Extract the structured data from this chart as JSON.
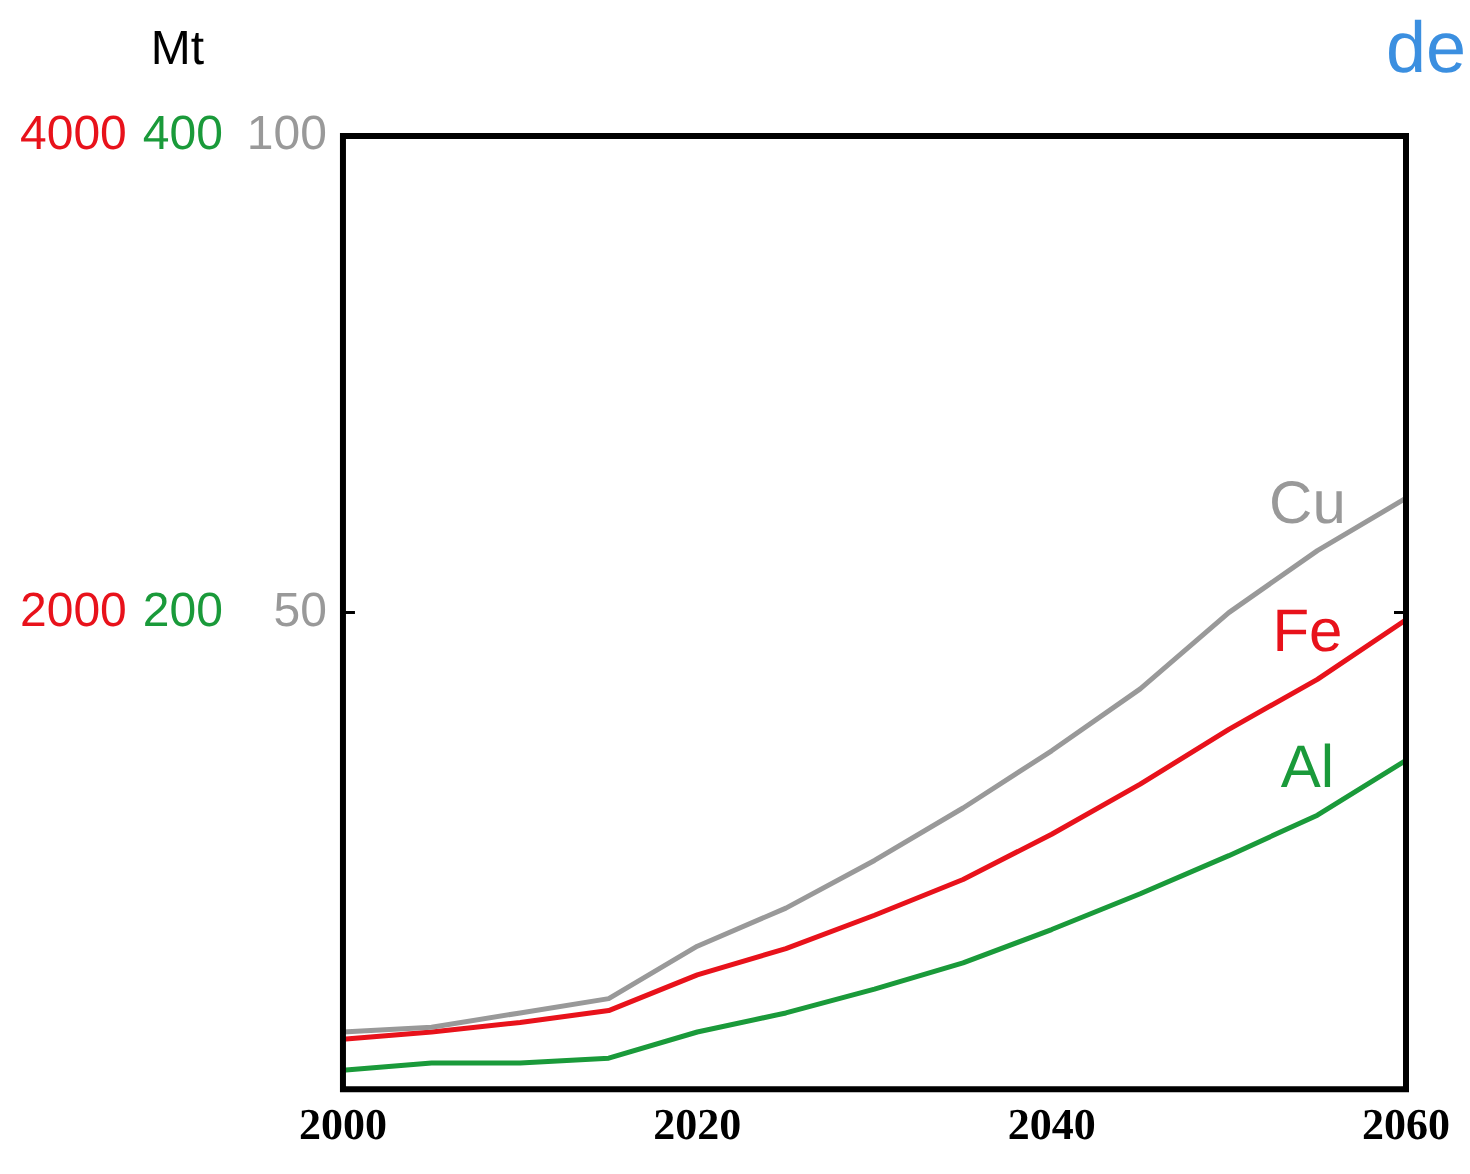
{
  "chart_data": {
    "type": "line",
    "annotations": [
      "Mt",
      "de"
    ],
    "x": [
      2000,
      2005,
      2010,
      2015,
      2020,
      2025,
      2030,
      2035,
      2040,
      2045,
      2050,
      2055,
      2060
    ],
    "xlim": [
      2000,
      2060
    ],
    "xticks": [
      2000,
      2020,
      2040,
      2060
    ],
    "ylim": [
      0,
      4000
    ],
    "yticks": [
      2000,
      4000
    ],
    "y2lim": [
      0,
      400
    ],
    "y2ticks": [
      200,
      400
    ],
    "y3lim": [
      0,
      100
    ],
    "y3ticks": [
      50,
      100
    ],
    "grid": false,
    "series": [
      {
        "name": "Cu",
        "color": "#999999",
        "axis": "y3",
        "values": [
          6,
          6.5,
          8,
          9.5,
          15,
          19,
          24,
          29.5,
          35.5,
          42,
          50,
          56.5,
          62
        ]
      },
      {
        "name": "Fe",
        "color": "#e8121b",
        "axis": "y",
        "values": [
          210,
          240,
          280,
          330,
          480,
          590,
          730,
          880,
          1070,
          1280,
          1510,
          1720,
          1970
        ]
      },
      {
        "name": "Al",
        "color": "#1a9a3a",
        "axis": "y2",
        "values": [
          8,
          11,
          11,
          13,
          24,
          32,
          42,
          53,
          67,
          82,
          98,
          115,
          138
        ]
      }
    ]
  }
}
